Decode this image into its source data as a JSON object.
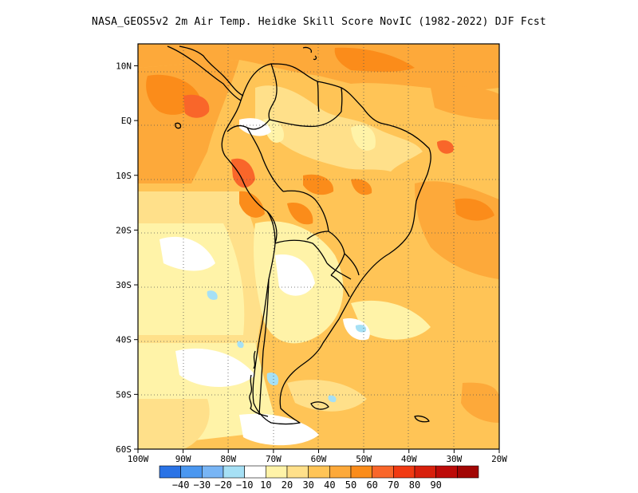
{
  "title": "NASA_GEOS5v2  2m Air Temp. Heidke Skill Score NovIC (1982-2022) DJF Fcst",
  "lat_labels": [
    "10N",
    "EQ",
    "10S",
    "20S",
    "30S",
    "40S",
    "50S",
    "60S"
  ],
  "lat_values": [
    10,
    0,
    -10,
    -20,
    -30,
    -40,
    -50,
    -60
  ],
  "lon_labels": [
    "100W",
    "90W",
    "80W",
    "70W",
    "60W",
    "50W",
    "40W",
    "30W",
    "20W"
  ],
  "lon_values": [
    -100,
    -90,
    -80,
    -70,
    -60,
    -50,
    -40,
    -30,
    -20
  ],
  "extent": {
    "lon_min": -100,
    "lon_max": -20,
    "lat_min": -60,
    "lat_max": 14
  },
  "colorbar": {
    "colors": [
      "#2a73e6",
      "#4a97f0",
      "#78b5f5",
      "#a6e0f5",
      "#ffffff",
      "#fff3a8",
      "#ffe08a",
      "#ffc456",
      "#fda93a",
      "#fb8c1a",
      "#f9662a",
      "#f13a12",
      "#d8200c",
      "#bd0b08",
      "#a20604"
    ],
    "labels": [
      "-40",
      "-30",
      "-20",
      "-10",
      "10",
      "20",
      "30",
      "40",
      "50",
      "60",
      "70",
      "80",
      "90"
    ]
  }
}
